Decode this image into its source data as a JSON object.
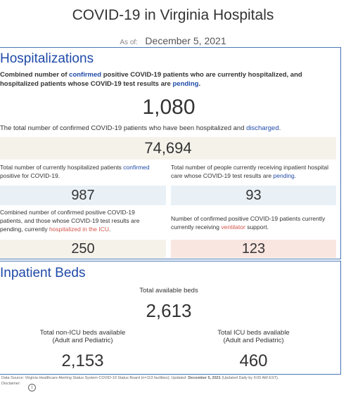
{
  "title": "COVID-19 in Virginia Hospitals",
  "as_of": {
    "label": "As of:",
    "date": "December 5, 2021"
  },
  "hospitalizations": {
    "title": "Hospitalizations",
    "combined": {
      "desc_parts": [
        "Combined number of ",
        "confirmed",
        " positive COVID-19 patients who are currently hospitalized, and hospitalized patients whose COVID-19 test results are ",
        "pending",
        "."
      ],
      "value": "1,080"
    },
    "discharged": {
      "desc_parts": [
        "The total number of confirmed COVID-19 patients who have been hospitalized and ",
        "discharged",
        "."
      ],
      "value": "74,694"
    },
    "confirmed": {
      "desc_parts": [
        "Total number of currently hospitalized patients ",
        "confirmed",
        " positive for COVID-19."
      ],
      "value": "987"
    },
    "pending": {
      "desc_parts": [
        "Total number of people currently receiving inpatient hospital care whose COVID-19 test results are ",
        "pending",
        "."
      ],
      "value": "93"
    },
    "icu": {
      "desc_parts": [
        "Combined number of confirmed positive COVID-19 patients, and those whose COVID-19 test results are pending, currently ",
        "hospitalized in the ICU",
        "."
      ],
      "value": "250"
    },
    "ventilator": {
      "desc_parts": [
        "Number of confirmed positive COVID-19 patients currently currently receiving ",
        "ventilator",
        " support."
      ],
      "value": "123"
    }
  },
  "beds": {
    "title": "Inpatient Beds",
    "total_label": "Total available beds",
    "total_value": "2,613",
    "non_icu_label_1": "Total non-ICU beds available",
    "non_icu_label_2": "(Adult and Pediatric)",
    "non_icu_value": "2,153",
    "icu_label_1": "Total ICU beds available",
    "icu_label_2": "(Adult and Pediatric)",
    "icu_value": "460"
  },
  "footer": {
    "source_prefix": "Data Source: Virginia Healthcare Alerting Status System COVID-19 Status Board (n=113 facilities); Updated: ",
    "source_date": "December 5, 2021",
    "source_suffix": " (Updated Daily by 9:00 AM EST).",
    "disclaimer": "Disclaimer:",
    "info_glyph": "i"
  },
  "colors": {
    "accent_blue": "#1f4aa8",
    "accent_red": "#d4534a",
    "border": "#4a76b5"
  }
}
